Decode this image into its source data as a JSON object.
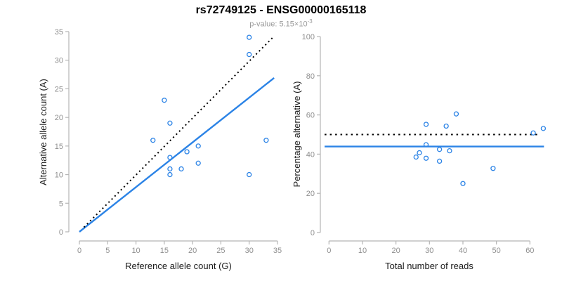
{
  "title": "rs72749125 - ENSG00000165118",
  "subtitle": {
    "prefix": "p-value: ",
    "mantissa": "5.15",
    "times_base": "×10",
    "exponent": "-3"
  },
  "colors": {
    "accent_blue": "#2b83e6",
    "dotted_black": "#000000",
    "axis_line_gray": "#b5b5b5",
    "tick_label_gray": "#8f8f8f",
    "axis_title_black": "#1a1a1a",
    "subtitle_gray": "#9b9b9b"
  },
  "chart_data": [
    {
      "type": "scatter",
      "panel": "left",
      "xlabel": "Reference allele count (G)",
      "ylabel": "Alternative allele count (A)",
      "xlim": [
        0,
        35
      ],
      "ylim": [
        0,
        35
      ],
      "xticks": [
        0,
        5,
        10,
        15,
        20,
        25,
        30,
        35
      ],
      "yticks": [
        0,
        5,
        10,
        15,
        20,
        25,
        30,
        35
      ],
      "grid": false,
      "points": [
        [
          13,
          16
        ],
        [
          15,
          23
        ],
        [
          16,
          19
        ],
        [
          16,
          13
        ],
        [
          16,
          11
        ],
        [
          16,
          10
        ],
        [
          18,
          11
        ],
        [
          19,
          14
        ],
        [
          21,
          15
        ],
        [
          21,
          12
        ],
        [
          30,
          34
        ],
        [
          30,
          31
        ],
        [
          30,
          10
        ],
        [
          33,
          16
        ]
      ],
      "lines": [
        {
          "name": "fitted-ratio-line",
          "style": "solid",
          "color": "blue",
          "from": [
            0,
            0
          ],
          "to": [
            34.4,
            26.9
          ]
        },
        {
          "name": "identity-line",
          "style": "dotted",
          "color": "black",
          "from": [
            0.8,
            0.8
          ],
          "to": [
            34.1,
            33.9
          ]
        }
      ]
    },
    {
      "type": "scatter",
      "panel": "right",
      "xlabel": "Total number of reads",
      "ylabel": "Percentage alternative (A)",
      "xlim": [
        0,
        65
      ],
      "ylim": [
        0,
        100
      ],
      "xticks": [
        0,
        10,
        20,
        30,
        40,
        50,
        60
      ],
      "yticks": [
        0,
        20,
        40,
        60,
        80,
        100
      ],
      "grid": false,
      "points": [
        [
          29,
          55.2
        ],
        [
          38,
          60.5
        ],
        [
          35,
          54.3
        ],
        [
          29,
          44.8
        ],
        [
          27,
          40.7
        ],
        [
          26,
          38.5
        ],
        [
          29,
          37.9
        ],
        [
          33,
          42.4
        ],
        [
          36,
          41.7
        ],
        [
          33,
          36.4
        ],
        [
          64,
          53.1
        ],
        [
          61,
          50.8
        ],
        [
          40,
          25.0
        ],
        [
          49,
          32.7
        ]
      ],
      "lines": [
        {
          "name": "mean-percentage-line",
          "style": "solid",
          "color": "blue",
          "from": [
            -1.3,
            43.9
          ],
          "to": [
            64.2,
            43.9
          ]
        },
        {
          "name": "expected-50pct-line",
          "style": "dotted",
          "color": "black",
          "from": [
            -1.3,
            50
          ],
          "to": [
            62.3,
            50
          ]
        }
      ]
    }
  ]
}
